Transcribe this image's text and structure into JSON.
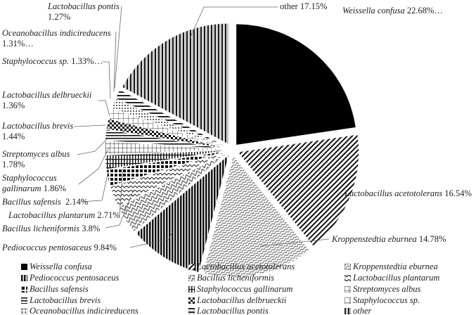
{
  "chart_data": {
    "type": "pie",
    "title": "",
    "series": [
      {
        "name": "Weissella confusa",
        "value": 22.68,
        "label_value": "22.68%…"
      },
      {
        "name": "Lactobacillus acetotolerans",
        "value": 16.54,
        "label_value": "16.54%"
      },
      {
        "name": "Kroppenstedtia eburnea",
        "value": 14.78,
        "label_value": "14.78%"
      },
      {
        "name": "Pediococcus pentosaceus",
        "value": 9.84,
        "label_value": "9.84%"
      },
      {
        "name": "Bacillus licheniformis",
        "value": 3.8,
        "label_value": "3.8%"
      },
      {
        "name": "Lactobacillus plantarum",
        "value": 2.71,
        "label_value": "2.71%"
      },
      {
        "name": "Bacillus safensis",
        "value": 2.14,
        "label_value": "2.14%"
      },
      {
        "name": "Staphylococcus gallinarum",
        "value": 1.86,
        "label_value": "1.86%"
      },
      {
        "name": "Streptomyces albus",
        "value": 1.78,
        "label_value": "1.78%"
      },
      {
        "name": "Lactobacillus brevis",
        "value": 1.44,
        "label_value": "1.44%"
      },
      {
        "name": "Lactobacillus delbrueckii",
        "value": 1.36,
        "label_value": "1.36%"
      },
      {
        "name": "Staphylococcus sp.",
        "value": 1.33,
        "label_value": "1.33%…"
      },
      {
        "name": "Oceanobacillus indicireducens",
        "value": 1.31,
        "label_value": "1.31%…"
      },
      {
        "name": "Lactobacillus pontis",
        "value": 1.27,
        "label_value": "1.27%"
      },
      {
        "name": "other",
        "value": 17.15,
        "label_value": "17.15%"
      }
    ],
    "legend_position": "bottom",
    "start_angle": "12 o'clock",
    "direction": "clockwise"
  }
}
